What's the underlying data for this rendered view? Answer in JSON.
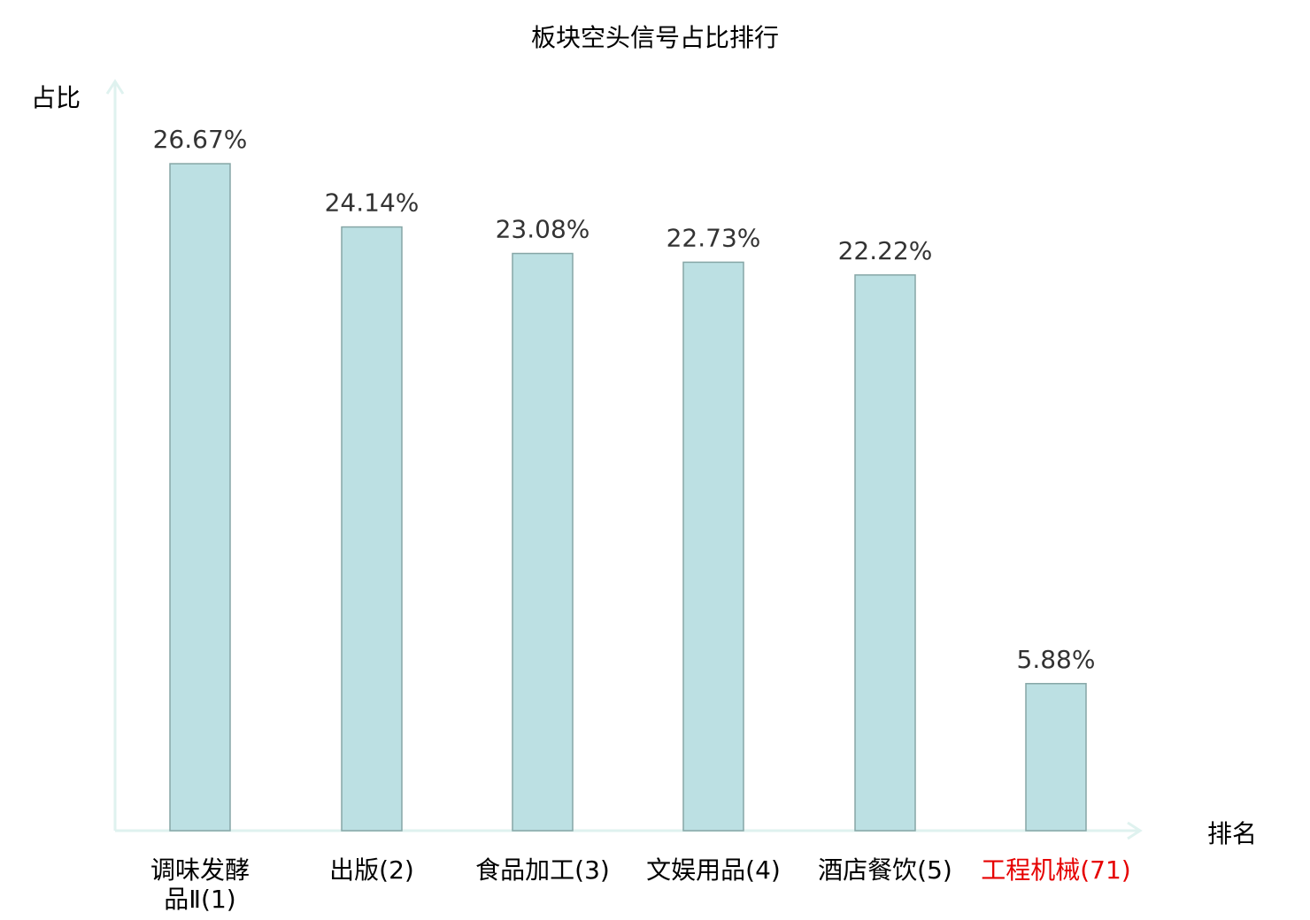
{
  "chart_data": {
    "type": "bar",
    "title": "板块空头信号占比排行",
    "ylabel": "占比",
    "xlabel": "排名",
    "categories": [
      "调味发酵品Ⅱ(1)",
      "出版(2)",
      "食品加工(3)",
      "文娱用品(4)",
      "酒店餐饮(5)",
      "工程机械(71)"
    ],
    "category_lines": [
      [
        "调味发酵",
        "品Ⅱ(1)"
      ],
      [
        "出版(2)"
      ],
      [
        "食品加工(3)"
      ],
      [
        "文娱用品(4)"
      ],
      [
        "酒店餐饮(5)"
      ],
      [
        "工程机械(71)"
      ]
    ],
    "values": [
      26.67,
      24.14,
      23.08,
      22.73,
      22.22,
      5.88
    ],
    "data_labels": [
      "26.67%",
      "24.14%",
      "23.08%",
      "22.73%",
      "22.22%",
      "5.88%"
    ],
    "highlighted_category_index": 5,
    "ylim": [
      0,
      30
    ],
    "grid": false,
    "colors": {
      "bar": "#bce0e3",
      "bar_edge": "#86a6a6",
      "axis": "#dff2ef",
      "highlight_label": "#e60000",
      "label": "#000000",
      "value_label": "#333333"
    }
  }
}
